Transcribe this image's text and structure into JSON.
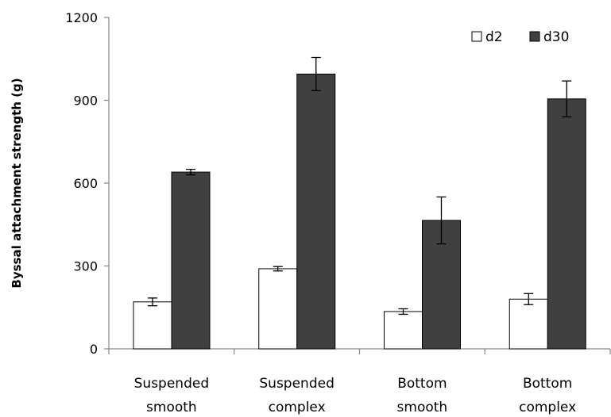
{
  "chart_data": {
    "type": "bar",
    "title": "",
    "xlabel": "",
    "ylabel": "Byssal attachment strength (g)",
    "ylim": [
      0,
      1200
    ],
    "yticks": [
      "0",
      "300",
      "600",
      "900",
      "1200"
    ],
    "grid": false,
    "legend_position": "top-right",
    "categories": [
      [
        "Suspended",
        "smooth"
      ],
      [
        "Suspended",
        "complex"
      ],
      [
        "Bottom",
        "smooth"
      ],
      [
        "Bottom",
        "complex"
      ]
    ],
    "series": [
      {
        "name": "d2",
        "color": "#ffffff",
        "values": [
          170,
          290,
          135,
          180
        ],
        "errors": [
          14,
          8,
          10,
          20
        ]
      },
      {
        "name": "d30",
        "color": "#404040",
        "values": [
          640,
          995,
          465,
          905
        ],
        "errors": [
          10,
          60,
          85,
          65
        ]
      }
    ]
  }
}
